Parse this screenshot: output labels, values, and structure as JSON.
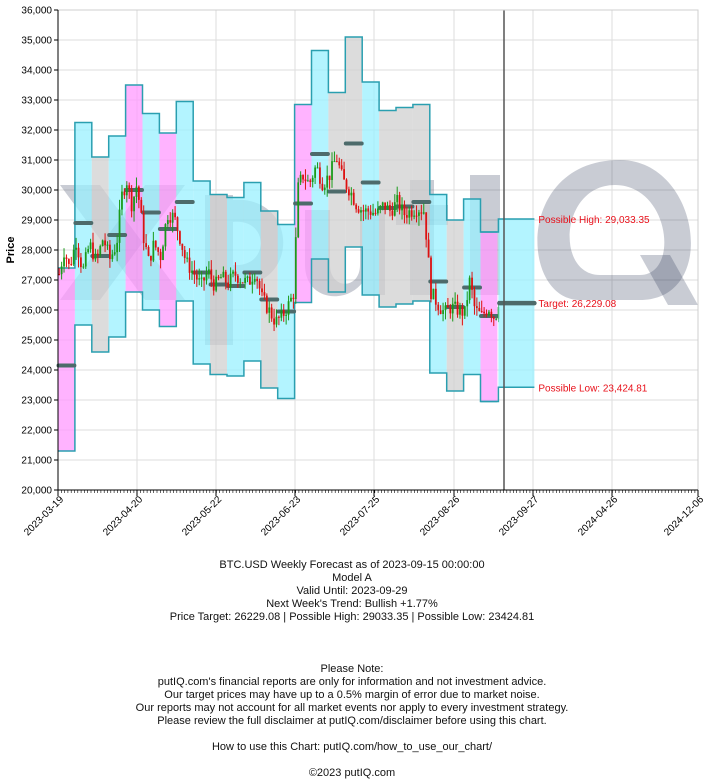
{
  "chart_data": {
    "type": "candlestick",
    "ylabel": "Price",
    "ylim": [
      20000,
      36000
    ],
    "yticks": [
      "20,000",
      "21,000",
      "22,000",
      "23,000",
      "24,000",
      "25,000",
      "26,000",
      "27,000",
      "28,000",
      "29,000",
      "30,000",
      "31,000",
      "32,000",
      "33,000",
      "34,000",
      "35,000",
      "36,000"
    ],
    "xtick_labels": [
      "2023-03-19",
      "2023-04-20",
      "2023-05-22",
      "2023-06-23",
      "2023-07-25",
      "2023-08-26",
      "2023-09-27",
      "2024-04-26",
      "2024-12-06"
    ],
    "forecast_date_index": 26,
    "weekly_bands": [
      {
        "low": 21300,
        "high": 27400,
        "color": "magenta",
        "level": 24150
      },
      {
        "low": 25500,
        "high": 32250,
        "color": "cyan",
        "level": 28900
      },
      {
        "low": 24600,
        "high": 31100,
        "color": "gray",
        "level": 27800
      },
      {
        "low": 25100,
        "high": 31800,
        "color": "cyan",
        "level": 28500
      },
      {
        "low": 26600,
        "high": 33500,
        "color": "magenta",
        "level": 30000
      },
      {
        "low": 26000,
        "high": 32550,
        "color": "cyan",
        "level": 29250
      },
      {
        "low": 25450,
        "high": 31900,
        "color": "magenta",
        "level": 28700
      },
      {
        "low": 26300,
        "high": 32950,
        "color": "cyan",
        "level": 29600
      },
      {
        "low": 24200,
        "high": 30300,
        "color": "cyan",
        "level": 27250
      },
      {
        "low": 23850,
        "high": 29850,
        "color": "gray",
        "level": 26850
      },
      {
        "low": 23800,
        "high": 29750,
        "color": "cyan",
        "level": 26800
      },
      {
        "low": 24300,
        "high": 30250,
        "color": "cyan",
        "level": 27250
      },
      {
        "low": 23400,
        "high": 29300,
        "color": "gray",
        "level": 26350
      },
      {
        "low": 23050,
        "high": 28850,
        "color": "cyan",
        "level": 25950
      },
      {
        "low": 26250,
        "high": 32850,
        "color": "magenta",
        "level": 29550
      },
      {
        "low": 27700,
        "high": 34650,
        "color": "cyan",
        "level": 31200
      },
      {
        "low": 26600,
        "high": 33250,
        "color": "gray",
        "level": 29950
      },
      {
        "low": 28100,
        "high": 35100,
        "color": "gray",
        "level": 31550
      },
      {
        "low": 26500,
        "high": 33600,
        "color": "cyan",
        "level": 30250
      },
      {
        "low": 26100,
        "high": 32650,
        "color": "gray",
        "level": 29400
      },
      {
        "low": 26200,
        "high": 32750,
        "color": "gray",
        "level": 29450
      },
      {
        "low": 26300,
        "high": 32850,
        "color": "gray",
        "level": 29600
      },
      {
        "low": 23900,
        "high": 29850,
        "color": "cyan",
        "level": 26950
      },
      {
        "low": 23300,
        "high": 29000,
        "color": "gray",
        "level": 26100
      },
      {
        "low": 23850,
        "high": 29700,
        "color": "cyan",
        "level": 26750
      },
      {
        "low": 22950,
        "high": 28600,
        "color": "magenta",
        "level": 25800
      },
      {
        "low": 23424.81,
        "high": 29033.35,
        "color": "cyan",
        "level": 26229.08
      }
    ],
    "price_trace": [
      [
        0,
        27200
      ],
      [
        0.3,
        28000
      ],
      [
        0.6,
        27400
      ],
      [
        1,
        28300
      ],
      [
        1.4,
        27300
      ],
      [
        1.8,
        28200
      ],
      [
        2.2,
        27600
      ],
      [
        2.6,
        28400
      ],
      [
        3,
        27700
      ],
      [
        3.4,
        28200
      ],
      [
        3.7,
        29800
      ],
      [
        4,
        30300
      ],
      [
        4.3,
        29500
      ],
      [
        4.6,
        30200
      ],
      [
        5,
        28400
      ],
      [
        5.3,
        27600
      ],
      [
        5.6,
        28200
      ],
      [
        6,
        27800
      ],
      [
        6.4,
        29200
      ],
      [
        6.8,
        29100
      ],
      [
        7.2,
        28300
      ],
      [
        7.5,
        27600
      ],
      [
        8,
        27200
      ],
      [
        8.4,
        26800
      ],
      [
        8.8,
        27300
      ],
      [
        9.2,
        26800
      ],
      [
        9.6,
        27100
      ],
      [
        10,
        26900
      ],
      [
        10.4,
        27200
      ],
      [
        10.8,
        27000
      ],
      [
        11.2,
        26900
      ],
      [
        11.6,
        27300
      ],
      [
        12,
        26400
      ],
      [
        12.4,
        26000
      ],
      [
        12.8,
        25600
      ],
      [
        13.2,
        25800
      ],
      [
        13.6,
        26200
      ],
      [
        13.9,
        26600
      ],
      [
        14.1,
        30000
      ],
      [
        14.4,
        30500
      ],
      [
        14.8,
        30200
      ],
      [
        15.2,
        30800
      ],
      [
        15.6,
        30200
      ],
      [
        16,
        30500
      ],
      [
        16.4,
        31100
      ],
      [
        16.8,
        30300
      ],
      [
        17.2,
        30000
      ],
      [
        17.6,
        29500
      ],
      [
        18,
        29300
      ],
      [
        18.4,
        29300
      ],
      [
        18.8,
        29200
      ],
      [
        19.2,
        29500
      ],
      [
        19.6,
        29300
      ],
      [
        20,
        29600
      ],
      [
        20.4,
        29200
      ],
      [
        20.8,
        29300
      ],
      [
        21.2,
        29400
      ],
      [
        21.6,
        29300
      ],
      [
        22,
        26600
      ],
      [
        22.4,
        26200
      ],
      [
        22.8,
        25900
      ],
      [
        23.2,
        26100
      ],
      [
        23.6,
        26000
      ],
      [
        24,
        25900
      ],
      [
        24.3,
        27000
      ],
      [
        24.6,
        26000
      ],
      [
        25,
        25800
      ],
      [
        25.4,
        26100
      ],
      [
        25.8,
        25700
      ],
      [
        26,
        26300
      ]
    ],
    "forecast": {
      "target": 26229.08,
      "possible_high": 29033.35,
      "possible_low": 23424.81,
      "target_label": "Target: 26,229.08",
      "high_label": "Possible High: 29,033.35",
      "low_label": "Possible Low: 23,424.81"
    },
    "colors": {
      "magenta": "#ff99ff",
      "cyan": "#99f0ff",
      "gray": "#d0d0d0",
      "band_edge": "#2a9fb0",
      "level": "#4d6b6b",
      "up": "#1a9a1a",
      "down": "#dd1111",
      "watermark": "#1e2a4a",
      "annotation": "#e8101a"
    }
  },
  "watermark": {
    "text": "putIQ"
  },
  "info": {
    "title": "BTC.USD Weekly Forecast as of 2023-09-15 00:00:00",
    "model": "Model A",
    "valid_until": "Valid Until: 2023-09-29",
    "trend": "Next Week's Trend: Bullish +1.77%",
    "targets": "Price Target: 26229.08 | Possible High: 29033.35 | Possible Low: 23424.81"
  },
  "disclaimer": {
    "heading": "Please Note:",
    "line1": "putIQ.com's financial reports are only for information and not investment advice.",
    "line2": "Our target prices may have up to a 0.5% margin of error due to market noise.",
    "line3": "Our reports may not account for all market events nor apply to every investment strategy.",
    "line4": "Please review the full disclaimer at putIQ.com/disclaimer before using this chart.",
    "howto": "How to use this Chart: putIQ.com/how_to_use_our_chart/",
    "copyright": "©2023 putIQ.com"
  }
}
